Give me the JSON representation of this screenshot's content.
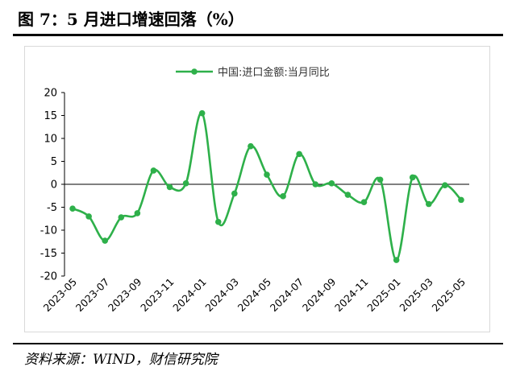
{
  "figure": {
    "title": "图 7：5 月进口增速回落（%）",
    "source": "资料来源：WIND，财信研究院"
  },
  "chart_data": {
    "type": "line",
    "title": "",
    "xlabel": "",
    "ylabel": "",
    "ylim": [
      -20,
      20
    ],
    "yticks": [
      20,
      15,
      10,
      5,
      0,
      -5,
      -10,
      -15,
      -20
    ],
    "grid": false,
    "legend_position": "top",
    "series_color": "#2eb04a",
    "x": [
      "2023-05",
      "2023-06",
      "2023-07",
      "2023-08",
      "2023-09",
      "2023-10",
      "2023-11",
      "2023-12",
      "2024-01",
      "2024-02",
      "2024-03",
      "2024-04",
      "2024-05",
      "2024-06",
      "2024-07",
      "2024-08",
      "2024-09",
      "2024-10",
      "2024-11",
      "2024-12",
      "2025-01",
      "2025-02",
      "2025-03",
      "2025-04",
      "2025-05"
    ],
    "xtick_labels": [
      "2023-05",
      "2023-07",
      "2023-09",
      "2023-11",
      "2024-01",
      "2024-03",
      "2024-05",
      "2024-07",
      "2024-09",
      "2024-11",
      "2025-01",
      "2025-03",
      "2025-05"
    ],
    "series": [
      {
        "name": "中国:进口金额:当月同比",
        "values": [
          -5.3,
          -7.0,
          -12.3,
          -7.2,
          -6.3,
          3.0,
          -0.6,
          0.2,
          15.5,
          -8.2,
          -2.0,
          8.3,
          2.1,
          -2.6,
          6.6,
          0.0,
          0.2,
          -2.3,
          -3.9,
          1.0,
          -16.5,
          1.5,
          -4.3,
          -0.2,
          -3.4
        ]
      }
    ]
  }
}
